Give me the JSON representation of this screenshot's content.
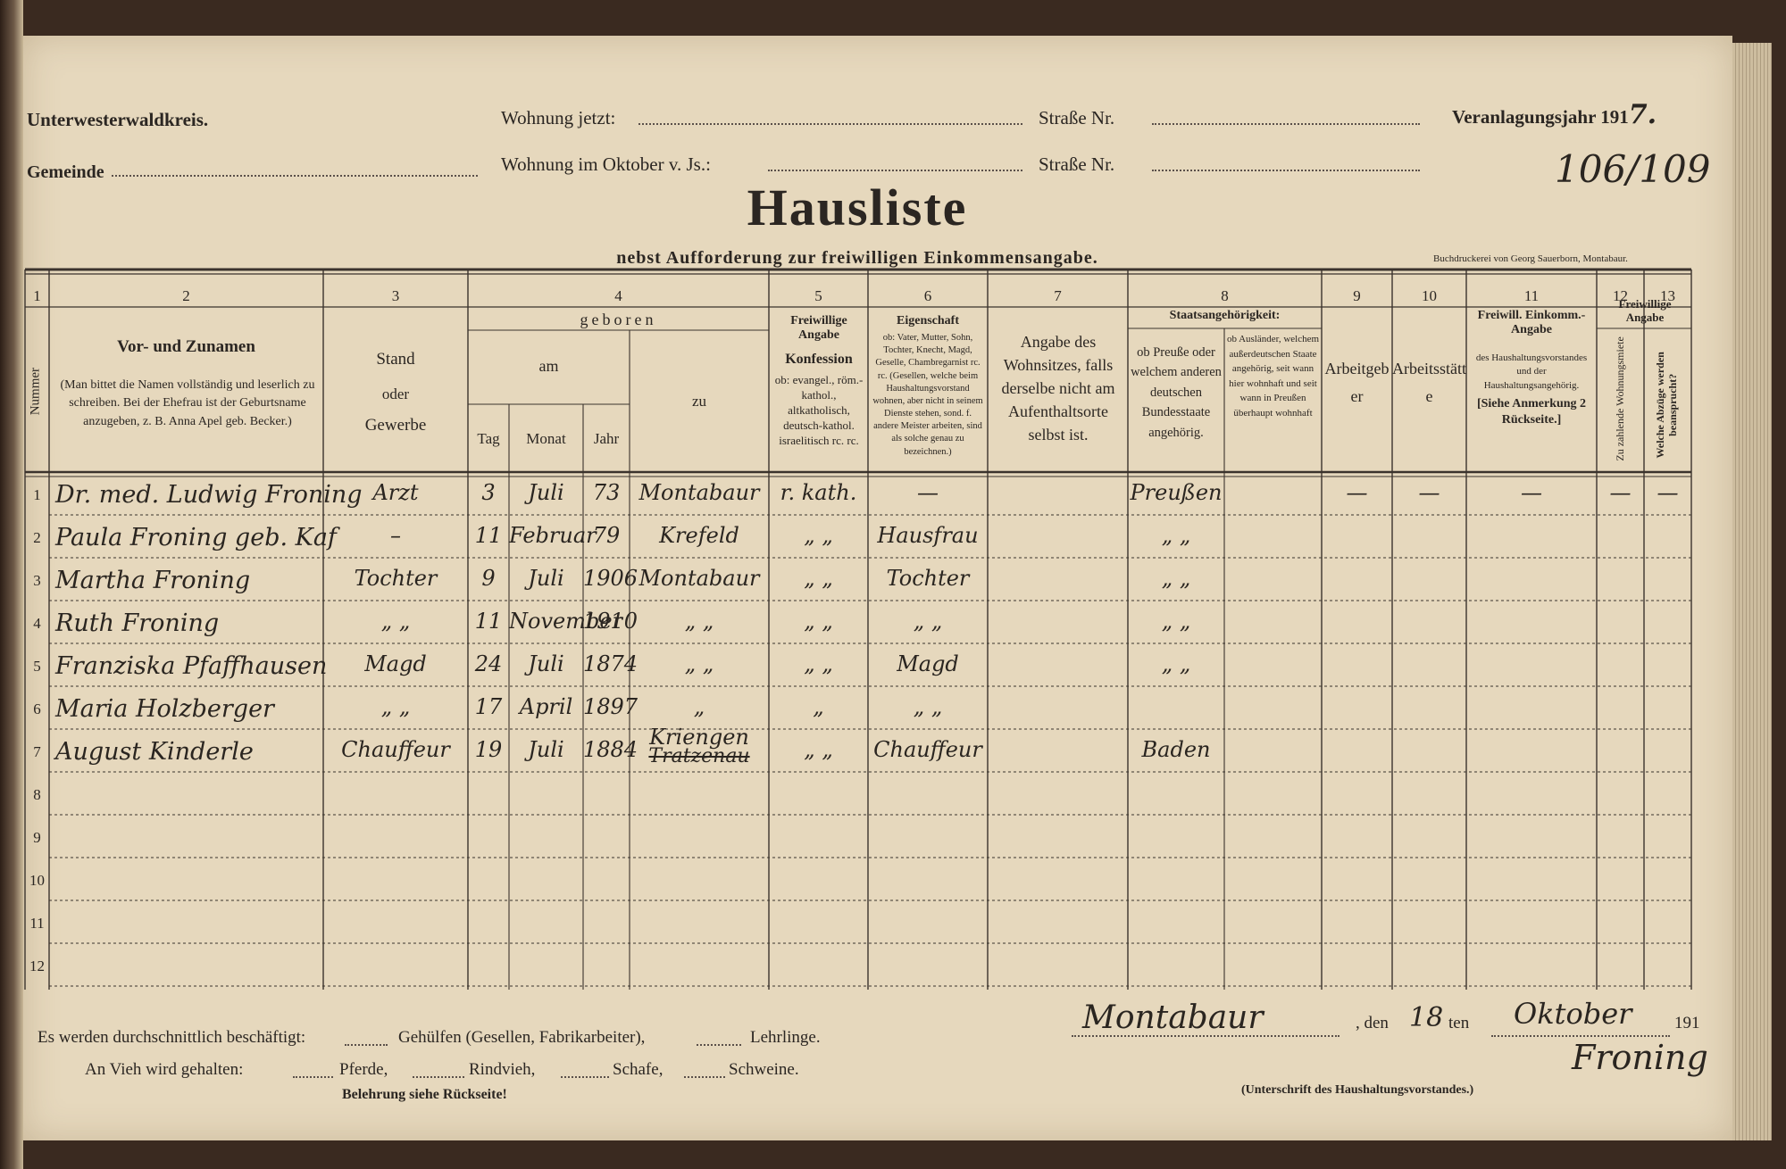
{
  "header": {
    "district": "Unterwesterwaldkreis.",
    "residence_now": "Wohnung jetzt:",
    "street_no_1": "Straße Nr.",
    "assessment_year_label": "Veranlagungsjahr 191",
    "assessment_year_hand": "7.",
    "municipality": "Gemeinde",
    "residence_october": "Wohnung im Oktober v. Js.:",
    "street_no_2": "Straße Nr.",
    "reference": "106/109",
    "title": "Hausliste",
    "subtitle": "nebst Aufforderung zur freiwilligen Einkommensangabe.",
    "printer": "Buchdruckerei von Georg Sauerborn, Montabaur."
  },
  "columns": {
    "c1": {
      "number": "1",
      "label": "Nummer"
    },
    "c2": {
      "number": "2",
      "label": "Vor- und Zunamen",
      "note": "(Man bittet die Namen vollständig und leserlich zu schreiben. Bei der Ehefrau ist der Geburtsname anzugeben, z. B. Anna Apel geb. Becker.)"
    },
    "c3": {
      "number": "3",
      "label": "Stand",
      "label2": "oder",
      "label3": "Gewerbe"
    },
    "c4": {
      "number": "4",
      "label": "geboren",
      "am": "am",
      "tag": "Tag",
      "monat": "Monat",
      "jahr": "Jahr",
      "zu": "zu"
    },
    "c5": {
      "number": "5",
      "label": "Freiwillige Angabe",
      "label2": "Konfession",
      "note": "ob: evangel., röm.-kathol., altkatholisch, deutsch-kathol. israelitisch rc. rc."
    },
    "c6": {
      "number": "6",
      "label": "Eigenschaft",
      "note": "ob: Vater, Mutter, Sohn, Tochter, Knecht, Magd, Geselle, Chambregarnist rc. rc. (Gesellen, welche beim Haushaltungsvorstand wohnen, aber nicht in seinem Dienste stehen, sond. f. andere Meister arbeiten, sind als solche genau zu bezeichnen.)"
    },
    "c7": {
      "number": "7",
      "label": "Angabe des Wohnsitzes, falls derselbe nicht am Aufenthaltsorte selbst ist."
    },
    "c8": {
      "number": "8",
      "label": "Staatsangehörigkeit:",
      "sub_a": "ob Preuße oder welchem anderen deutschen Bundesstaate angehörig.",
      "sub_b": "ob Ausländer, welchem außerdeutschen Staate angehörig, seit wann hier wohnhaft und seit wann in Preußen überhaupt wohnhaft"
    },
    "c9": {
      "number": "9",
      "label": "Arbeitgeber"
    },
    "c10": {
      "number": "10",
      "label": "Arbeitsstätte"
    },
    "c11": {
      "number": "11",
      "label": "Freiwill. Einkomm.-Angabe",
      "note": "des Haushaltungsvorstandes und der Haushaltungsangehörig.",
      "ref": "[Siehe Anmerkung 2 Rückseite.]"
    },
    "c12": {
      "number": "12",
      "label": "Zu zahlende Wohnungsmiete"
    },
    "c13": {
      "number": "13",
      "label": "Welche Abzüge werden beansprucht?"
    },
    "c12_13_group": "Freiwillige Angabe"
  },
  "table": {
    "rows": [
      {
        "number": "1",
        "name": "Dr. med. Ludwig Froning",
        "stand": "Arzt",
        "tag": "3",
        "monat": "Juli",
        "jahr": "73",
        "zu": "Montabaur",
        "konfession": "r. kath.",
        "eigenschaft": "—",
        "staat": "Preußen",
        "c9": "—",
        "c10": "—",
        "c11": "—",
        "c12": "—",
        "c13": "—"
      },
      {
        "number": "2",
        "name": "Paula Froning geb. Kaf",
        "stand": "–",
        "tag": "11",
        "monat": "Februar",
        "jahr": "79",
        "zu": "Krefeld",
        "konfession": "„ „",
        "eigenschaft": "Hausfrau",
        "staat": "„ „"
      },
      {
        "number": "3",
        "name": "Martha Froning",
        "stand": "Tochter",
        "tag": "9",
        "monat": "Juli",
        "jahr": "1906",
        "zu": "Montabaur",
        "konfession": "„ „",
        "eigenschaft": "Tochter",
        "staat": "„ „"
      },
      {
        "number": "4",
        "name": "Ruth Froning",
        "stand": "„ „",
        "tag": "11",
        "monat": "November",
        "jahr": "1910",
        "zu": "„ „",
        "konfession": "„ „",
        "eigenschaft": "„ „",
        "staat": "„ „"
      },
      {
        "number": "5",
        "name": "Franziska Pfaffhausen",
        "stand": "Magd",
        "tag": "24",
        "monat": "Juli",
        "jahr": "1874",
        "zu": "„ „",
        "konfession": "„ „",
        "eigenschaft": "Magd",
        "staat": "„ „"
      },
      {
        "number": "6",
        "name": "Maria Holzberger",
        "stand": "„ „",
        "tag": "17",
        "monat": "April",
        "jahr": "1897",
        "zu": "„",
        "konfession": "„",
        "eigenschaft": "„ „"
      },
      {
        "number": "7",
        "name": "August Kinderle",
        "stand": "Chauffeur",
        "tag": "19",
        "monat": "Juli",
        "jahr": "1884",
        "zu": "Kriengen",
        "zu_struck": "Tratzenau",
        "konfession": "„ „",
        "eigenschaft": "Chauffeur",
        "staat": "Baden"
      },
      {
        "number": "8"
      },
      {
        "number": "9"
      },
      {
        "number": "10"
      },
      {
        "number": "11"
      },
      {
        "number": "12"
      }
    ]
  },
  "footer": {
    "employed": {
      "label": "Es werden durchschnittlich beschäftigt:",
      "helpers": "Gehülfen (Gesellen, Fabrikarbeiter),",
      "apprentices": "Lehrlinge."
    },
    "livestock": {
      "label": "An Vieh wird gehalten:",
      "horses": "Pferde,",
      "cattle": "Rindvieh,",
      "sheep": "Schafe,",
      "pigs": "Schweine."
    },
    "note": "Belehrung siehe Rückseite!"
  },
  "signature": {
    "place": "Montabaur",
    "den": ", den",
    "day": "18",
    "ten": "ten",
    "month": "Oktober",
    "year_prefix": "191",
    "name": "Froning",
    "caption": "(Unterschrift des Haushaltungsvorstandes.)"
  }
}
